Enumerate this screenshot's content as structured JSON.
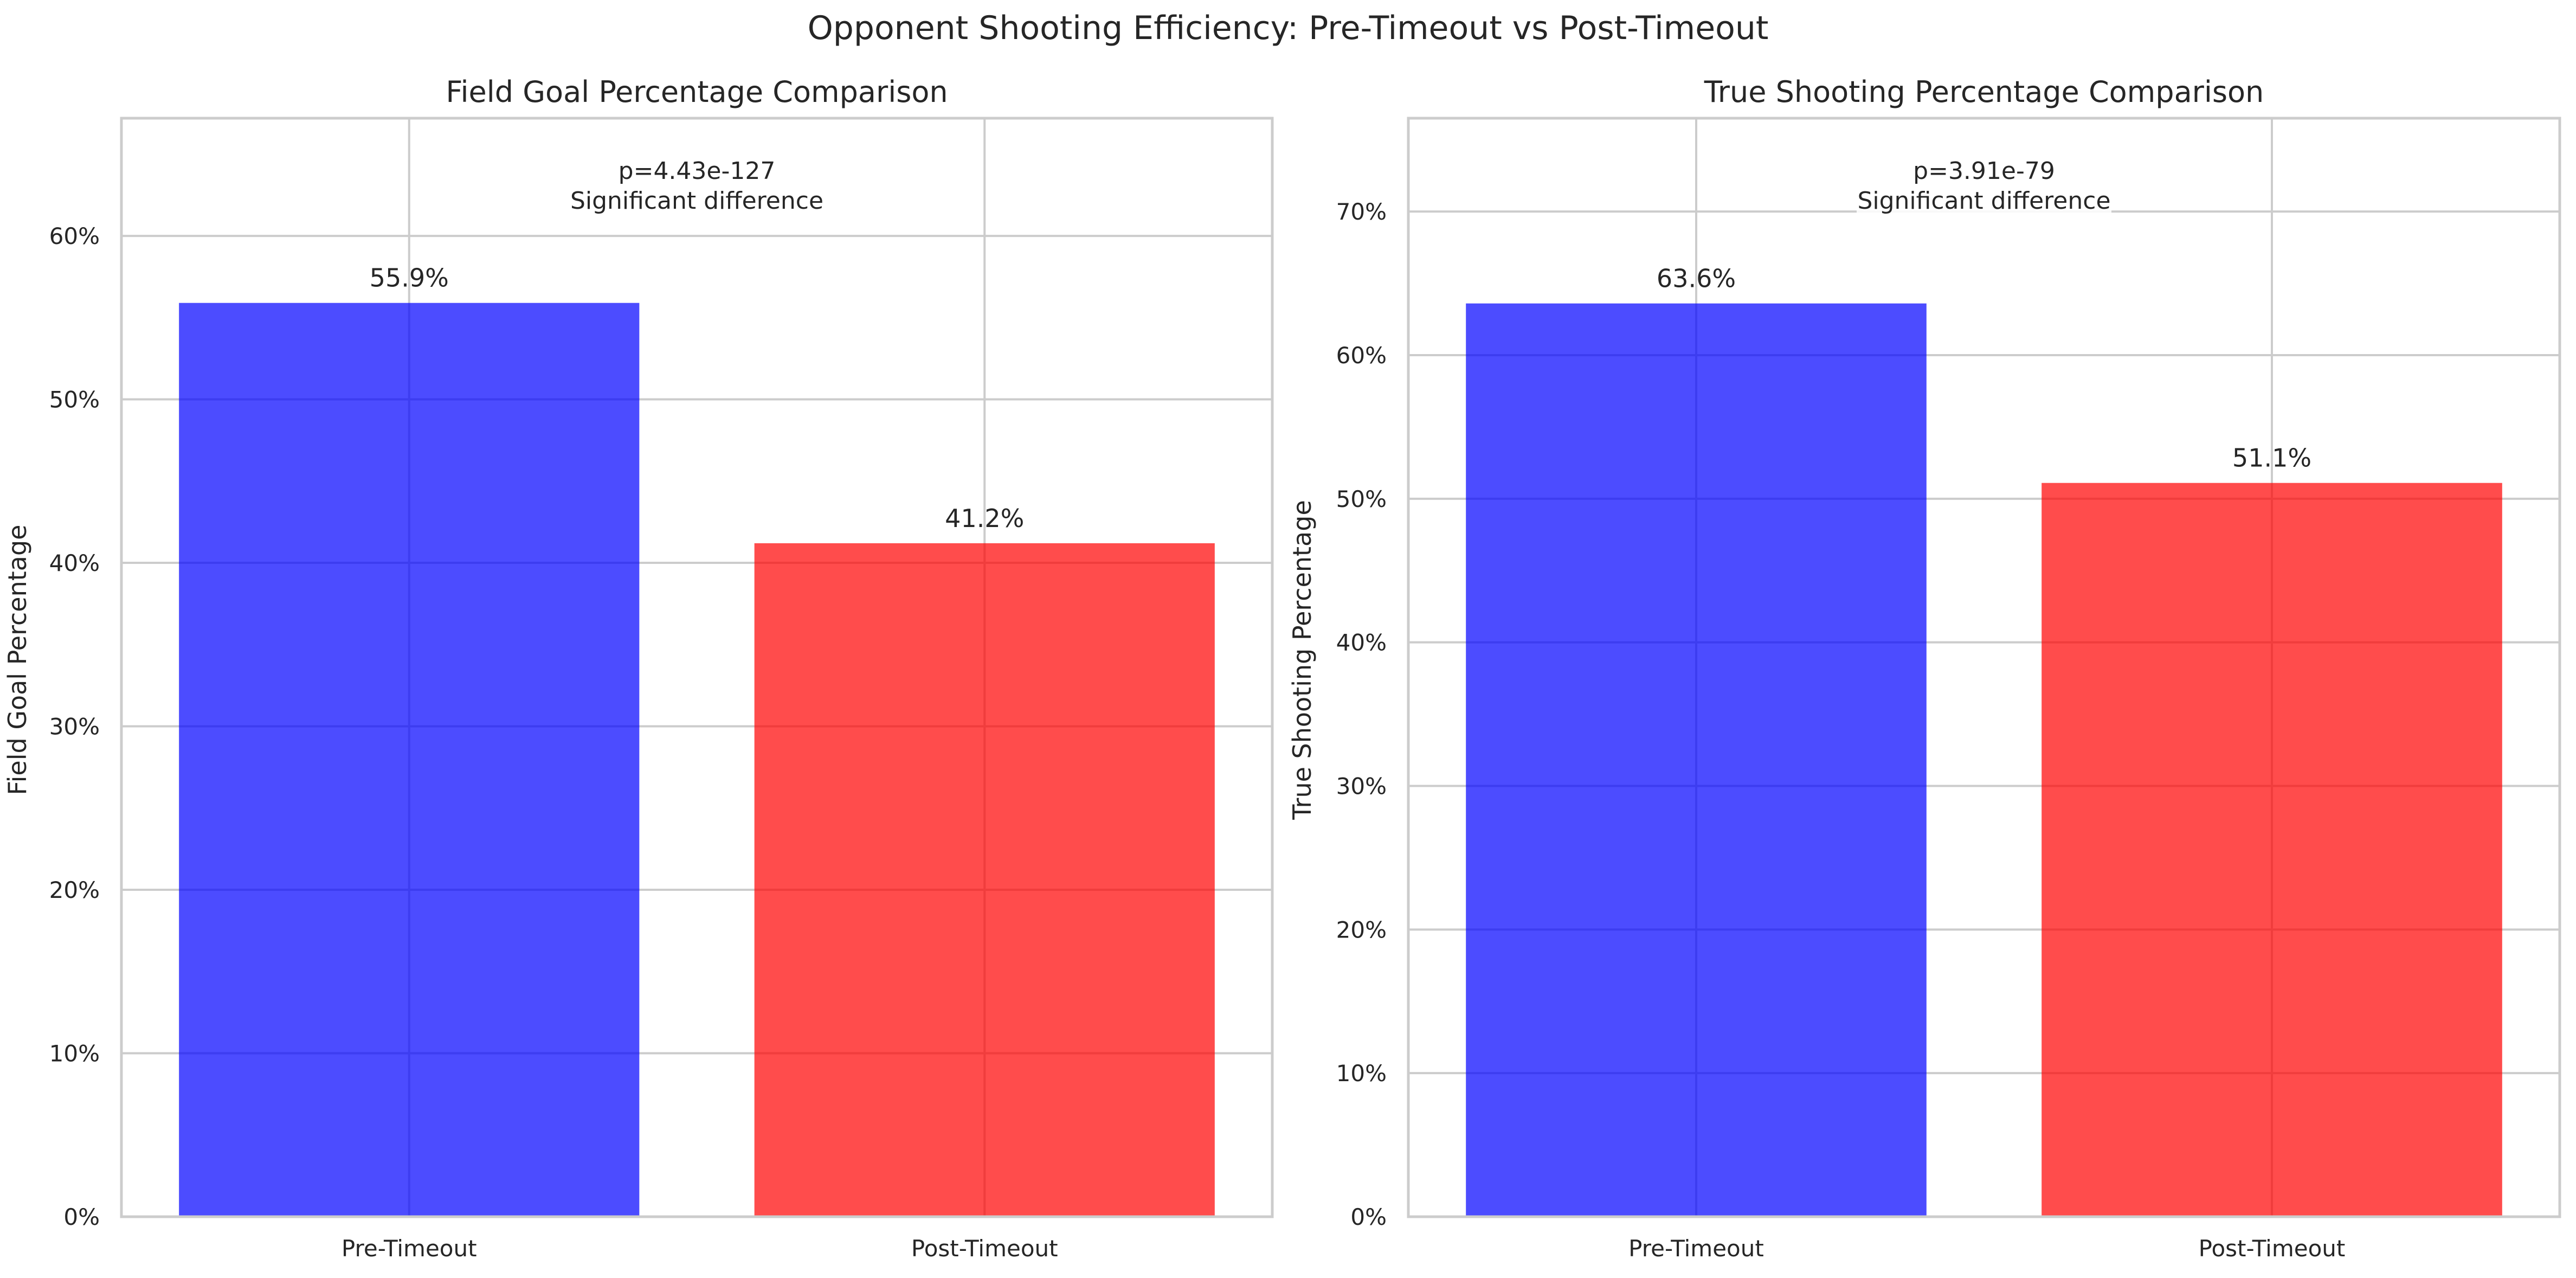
{
  "figure": {
    "title": "Opponent Shooting Efficiency: Pre-Timeout vs Post-Timeout"
  },
  "colors": {
    "pre": "#0000ff",
    "post": "#ff0000",
    "grid": "#cccccc",
    "spine": "#cccccc",
    "bar_alpha": 0.7
  },
  "chart_data": [
    {
      "type": "bar",
      "title": "Field Goal Percentage Comparison",
      "xlabel": "",
      "ylabel": "Field Goal Percentage",
      "categories": [
        "Pre-Timeout",
        "Post-Timeout"
      ],
      "values": [
        55.9,
        41.2
      ],
      "data_labels": [
        "55.9%",
        "41.2%"
      ],
      "ylim": [
        0,
        67.2
      ],
      "yticks": [
        0,
        10,
        20,
        30,
        40,
        50,
        60
      ],
      "ytick_labels": [
        "0%",
        "10%",
        "20%",
        "30%",
        "40%",
        "50%",
        "60%"
      ],
      "annotation": [
        "p=4.43e-127",
        "Significant difference"
      ],
      "grid": true
    },
    {
      "type": "bar",
      "title": "True Shooting Percentage Comparison",
      "xlabel": "",
      "ylabel": "True Shooting Percentage",
      "categories": [
        "Pre-Timeout",
        "Post-Timeout"
      ],
      "values": [
        63.6,
        51.1
      ],
      "data_labels": [
        "63.6%",
        "51.1%"
      ],
      "ylim": [
        0,
        76.5
      ],
      "yticks": [
        0,
        10,
        20,
        30,
        40,
        50,
        60,
        70
      ],
      "ytick_labels": [
        "0%",
        "10%",
        "20%",
        "30%",
        "40%",
        "50%",
        "60%",
        "70%"
      ],
      "annotation": [
        "p=3.91e-79",
        "Significant difference"
      ],
      "grid": true
    }
  ]
}
